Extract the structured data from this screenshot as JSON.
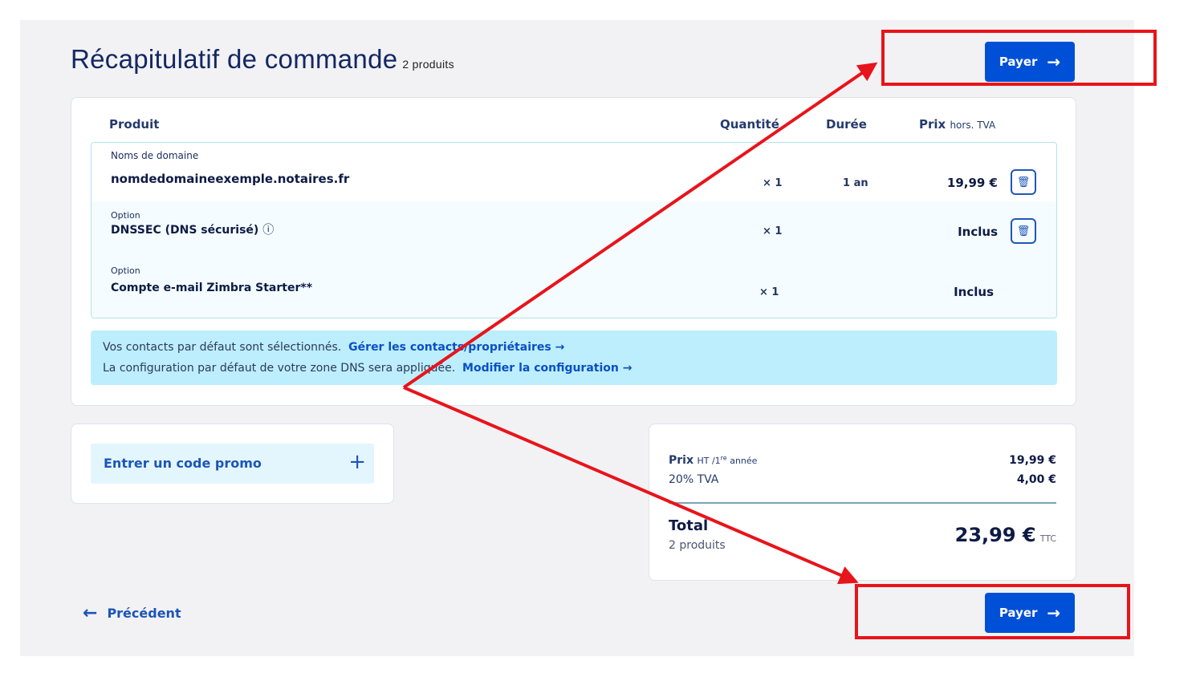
{
  "header": {
    "title": "Récapitulatif de commande",
    "count": "2 produits",
    "pay_label": "Payer",
    "arrow": "→"
  },
  "table": {
    "headers": {
      "product": "Produit",
      "quantity": "Quantité",
      "duration": "Durée",
      "price": "Prix",
      "price_suffix": "hors. TVA"
    },
    "rows": [
      {
        "label": "Noms de domaine",
        "name": "nomdedomaineexemple.notaires.fr",
        "qty": "× 1",
        "duration": "1 an",
        "price": "19,99 €",
        "deletable": true
      },
      {
        "label": "Option",
        "name": "DNSSEC (DNS sécurisé)",
        "info_icon": "ⓘ",
        "qty": "× 1",
        "duration": "",
        "price": "Inclus",
        "deletable": true
      },
      {
        "label": "Option",
        "name": "Compte e-mail Zimbra Starter**",
        "qty": "× 1",
        "duration": "",
        "price": "Inclus",
        "deletable": false
      }
    ]
  },
  "info": {
    "line1": "Vos contacts par défaut sont sélectionnés.",
    "link1": "Gérer les contacts/propriétaires →",
    "line2": "La configuration par défaut de votre zone DNS sera appliquée.",
    "link2": "Modifier la configuration →"
  },
  "promo": {
    "label": "Entrer un code promo",
    "icon": "+"
  },
  "summary": {
    "price_label": "Prix",
    "price_suffix": "HT /1",
    "price_sup": "re",
    "price_year": " année",
    "price_value": "19,99 €",
    "tva_label": "20% TVA",
    "tva_value": "4,00 €",
    "total_label": "Total",
    "total_count": "2 produits",
    "total_value": "23,99 €",
    "total_suffix": "TTC"
  },
  "footer": {
    "back_label": "Précédent",
    "back_icon": "←",
    "pay_label": "Payer",
    "arrow": "→"
  },
  "annotation_color": "#e8141b",
  "brand_color": "#0050d7"
}
